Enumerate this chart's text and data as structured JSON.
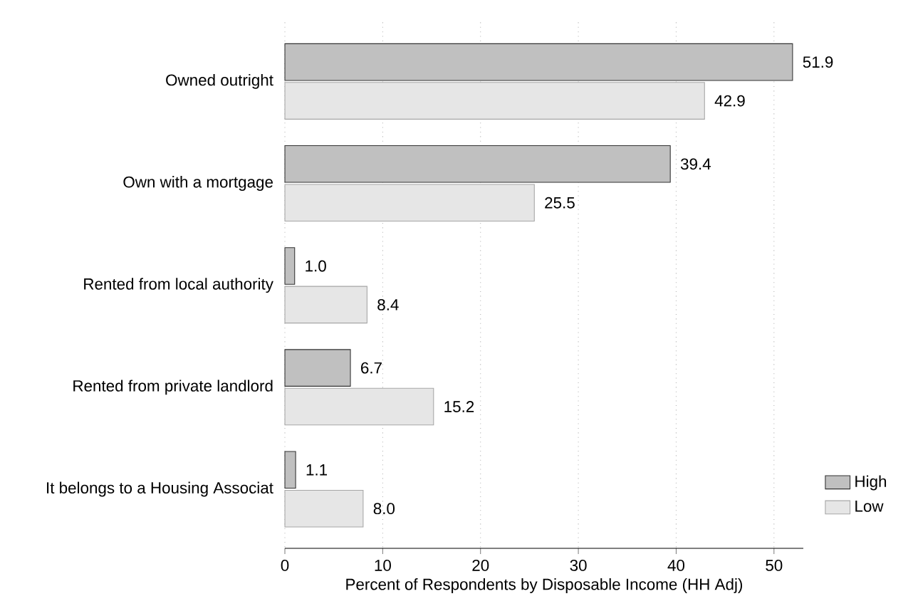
{
  "chart_data": {
    "type": "bar",
    "orientation": "horizontal",
    "xlabel": "Percent of Respondents by Disposable Income (HH Adj)",
    "categories": [
      "Owned outright",
      "Own with a mortgage",
      "Rented from local authority",
      "Rented from private landlord",
      "It belongs to a Housing Associat"
    ],
    "series": [
      {
        "name": "High",
        "color": "#c0c0c0",
        "values": [
          51.9,
          39.4,
          1.0,
          6.7,
          1.1
        ],
        "value_labels": [
          "51.9",
          "39.4",
          "1.0",
          "6.7",
          "1.1"
        ]
      },
      {
        "name": "Low",
        "color": "#e6e6e6",
        "values": [
          42.9,
          25.5,
          8.4,
          15.2,
          8.0
        ],
        "value_labels": [
          "42.9",
          "25.5",
          "8.4",
          "15.2",
          "8.0"
        ]
      }
    ],
    "xlim": [
      0,
      53
    ],
    "xticks": [
      0,
      10,
      20,
      30,
      40,
      50
    ],
    "grid": "x",
    "legend": "bottom right"
  }
}
